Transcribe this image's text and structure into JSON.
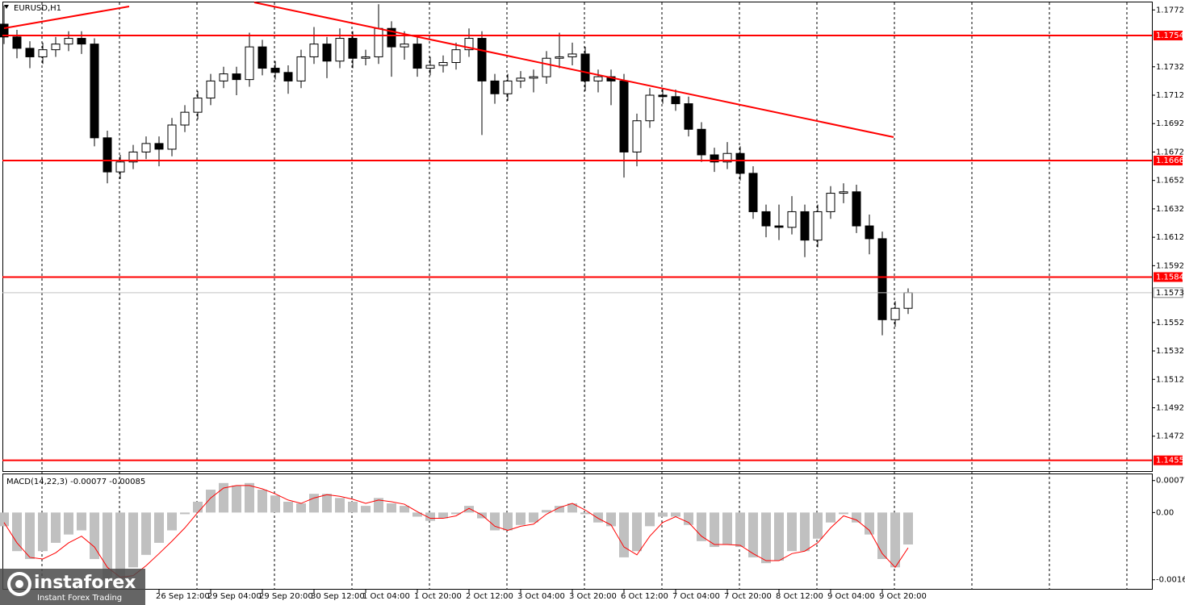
{
  "chart_data": [
    {
      "type": "candlestick",
      "title": "EURUSD,H1",
      "categories": [
        null,
        null,
        null,
        null,
        null,
        null,
        null,
        null,
        null,
        null,
        null,
        null,
        "26 Sep 12:00",
        null,
        null,
        null,
        "29 Sep 04:00",
        null,
        null,
        null,
        "29 Sep 20:00",
        null,
        null,
        null,
        "30 Sep 12:00",
        null,
        null,
        null,
        "1 Oct 04:00",
        null,
        null,
        null,
        "1 Oct 20:00",
        null,
        null,
        null,
        "2 Oct 12:00",
        null,
        null,
        null,
        "3 Oct 04:00",
        null,
        null,
        null,
        "3 Oct 20:00",
        null,
        null,
        null,
        "6 Oct 12:00",
        null,
        null,
        null,
        "7 Oct 04:00",
        null,
        null,
        null,
        "7 Oct 20:00",
        null,
        null,
        null,
        "8 Oct 12:00",
        null,
        null,
        null,
        "9 Oct 04:00",
        null,
        null,
        null,
        "9 Oct 20:00",
        null,
        null
      ],
      "open": [
        1.1762,
        1.1753,
        1.1745,
        1.1739,
        1.1744,
        1.1748,
        1.1752,
        1.1748,
        1.1682,
        1.1658,
        1.1665,
        1.1672,
        1.1678,
        1.1674,
        1.1691,
        1.17,
        1.171,
        1.1722,
        1.1727,
        1.1723,
        1.1746,
        1.1731,
        1.1728,
        1.1722,
        1.1739,
        1.1748,
        1.1736,
        1.1752,
        1.1738,
        1.1739,
        1.1759,
        1.1746,
        1.1748,
        1.1731,
        1.1733,
        1.1735,
        1.1744,
        1.1752,
        1.1722,
        1.1713,
        1.1722,
        1.1724,
        1.1725,
        1.1738,
        1.1739,
        1.1741,
        1.1722,
        1.1725,
        1.1722,
        1.1672,
        1.1694,
        1.1712,
        1.1711,
        1.1706,
        1.1688,
        1.167,
        1.1665,
        1.1671,
        1.1657,
        1.163,
        1.162,
        1.1619,
        1.163,
        1.161,
        1.163,
        1.1643,
        1.1644,
        1.162,
        1.1611,
        1.1554,
        1.1562
      ],
      "high": [
        1.1775,
        1.1758,
        1.175,
        1.1749,
        1.1753,
        1.1757,
        1.1757,
        1.1752,
        1.1687,
        1.167,
        1.1677,
        1.1683,
        1.1683,
        1.1696,
        1.1705,
        1.1715,
        1.1727,
        1.1732,
        1.1732,
        1.1756,
        1.1751,
        1.1736,
        1.1733,
        1.1744,
        1.176,
        1.1753,
        1.1759,
        1.1757,
        1.1744,
        1.1776,
        1.1764,
        1.1757,
        1.1753,
        1.1739,
        1.174,
        1.1749,
        1.1759,
        1.1757,
        1.1727,
        1.1727,
        1.1729,
        1.173,
        1.1743,
        1.1756,
        1.1749,
        1.1746,
        1.173,
        1.173,
        1.1727,
        1.1699,
        1.1717,
        1.1717,
        1.1716,
        1.1711,
        1.1693,
        1.1675,
        1.1679,
        1.1676,
        1.1662,
        1.1635,
        1.1635,
        1.1641,
        1.1635,
        1.1635,
        1.1648,
        1.165,
        1.1649,
        1.1628,
        1.1616,
        1.1567,
        1.1576
      ],
      "low": [
        1.1748,
        1.1738,
        1.1731,
        1.1734,
        1.1739,
        1.1743,
        1.1741,
        1.1676,
        1.165,
        1.1653,
        1.166,
        1.1667,
        1.1662,
        1.1669,
        1.1686,
        1.1695,
        1.1705,
        1.1717,
        1.1712,
        1.1718,
        1.1726,
        1.1723,
        1.1713,
        1.1717,
        1.1734,
        1.1724,
        1.1731,
        1.1731,
        1.1733,
        1.1734,
        1.1725,
        1.1737,
        1.1725,
        1.1726,
        1.1728,
        1.173,
        1.1739,
        1.1684,
        1.1706,
        1.1708,
        1.1717,
        1.1714,
        1.172,
        1.1731,
        1.1733,
        1.1715,
        1.1714,
        1.1705,
        1.1654,
        1.1662,
        1.1689,
        1.1706,
        1.1701,
        1.1683,
        1.1665,
        1.1658,
        1.166,
        1.1652,
        1.1625,
        1.1612,
        1.161,
        1.1614,
        1.1598,
        1.1605,
        1.1625,
        1.1636,
        1.1615,
        1.16,
        1.1543,
        1.1549,
        1.1558
      ],
      "close": [
        1.1753,
        1.1745,
        1.1739,
        1.1744,
        1.1748,
        1.1752,
        1.1748,
        1.1682,
        1.1658,
        1.1665,
        1.1672,
        1.1678,
        1.1674,
        1.1691,
        1.17,
        1.171,
        1.1722,
        1.1727,
        1.1723,
        1.1746,
        1.1731,
        1.1728,
        1.1722,
        1.1739,
        1.1748,
        1.1736,
        1.1752,
        1.1738,
        1.1739,
        1.1759,
        1.1746,
        1.1748,
        1.1731,
        1.1733,
        1.1735,
        1.1744,
        1.1752,
        1.1722,
        1.1713,
        1.1722,
        1.1724,
        1.1725,
        1.1738,
        1.1739,
        1.1741,
        1.1722,
        1.1725,
        1.1722,
        1.1672,
        1.1694,
        1.1712,
        1.1711,
        1.1706,
        1.1688,
        1.167,
        1.1665,
        1.1671,
        1.1657,
        1.163,
        1.162,
        1.1619,
        1.163,
        1.161,
        1.163,
        1.1643,
        1.1644,
        1.162,
        1.1611,
        1.1554,
        1.1562,
        1.1573
      ],
      "up_color": "#ffffff",
      "down_color": "#000000",
      "outline_color": "#000000",
      "ylim": [
        1.1448,
        1.1779
      ],
      "yticks": [
        1.1772,
        1.1732,
        1.1712,
        1.1692,
        1.1672,
        1.1652,
        1.1632,
        1.1612,
        1.1592,
        1.1552,
        1.1532,
        1.1512,
        1.1492,
        1.1472
      ],
      "levels": [
        1.1754,
        1.1666,
        1.1584,
        1.1455
      ],
      "level_color": "#ff0000",
      "last_price": 1.1573,
      "last_price_color": "#c0c0c0",
      "grid": true,
      "watermark": {
        "brand": "instaforex",
        "tagline": "Instant Forex Trading"
      }
    },
    {
      "type": "macd",
      "title": "MACD(14,22,3) -0.00077 -0.00085",
      "histogram": [
        -0.00033,
        -0.00093,
        -0.00112,
        -0.00093,
        -0.00073,
        -0.00053,
        -0.00043,
        -0.00112,
        -0.00162,
        -0.00162,
        -0.00132,
        -0.00102,
        -0.00073,
        -0.00043,
        -4e-05,
        0.00026,
        0.00055,
        0.00071,
        0.00065,
        0.00071,
        0.00055,
        0.00041,
        0.00026,
        0.00022,
        0.00045,
        0.00045,
        0.00035,
        0.00026,
        0.00016,
        0.00035,
        0.00022,
        0.00016,
        -0.0001,
        -0.0002,
        -0.00014,
        -4e-05,
        0.00016,
        -0.00014,
        -0.00043,
        -0.00043,
        -0.0003,
        -0.00024,
        6e-05,
        0.00016,
        0.00022,
        -4e-05,
        -0.00024,
        -0.00033,
        -0.00108,
        -0.00093,
        -0.00033,
        -0.0001,
        -0.0001,
        -0.0003,
        -0.00069,
        -0.00083,
        -0.00077,
        -0.00083,
        -0.00108,
        -0.00122,
        -0.00116,
        -0.00093,
        -0.00093,
        -0.00063,
        -0.00024,
        -4e-05,
        -0.00024,
        -0.00053,
        -0.00112,
        -0.00132,
        -0.00077
      ],
      "signal": [
        -0.00024,
        -0.00073,
        -0.00108,
        -0.00112,
        -0.00097,
        -0.00073,
        -0.00057,
        -0.00083,
        -0.00132,
        -0.00156,
        -0.00152,
        -0.00128,
        -0.00099,
        -0.00069,
        -0.00037,
        0,
        0.00035,
        0.00059,
        0.00065,
        0.00065,
        0.00057,
        0.00045,
        0.0003,
        0.00022,
        0.00035,
        0.00043,
        0.00039,
        0.00032,
        0.00022,
        0.0003,
        0.00026,
        0.0002,
        2e-05,
        -0.00014,
        -0.00014,
        -8e-05,
        0.0001,
        -6e-05,
        -0.00033,
        -0.00043,
        -0.00033,
        -0.00028,
        -4e-05,
        0.00012,
        0.00022,
        6e-05,
        -0.00014,
        -0.0003,
        -0.00083,
        -0.00102,
        -0.00057,
        -0.00024,
        -0.0001,
        -0.00024,
        -0.00057,
        -0.00077,
        -0.00077,
        -0.00079,
        -0.00099,
        -0.00116,
        -0.00116,
        -0.00099,
        -0.00093,
        -0.00073,
        -0.00037,
        -8e-05,
        -0.00018,
        -0.00043,
        -0.00099,
        -0.00132,
        -0.00085
      ],
      "histogram_color": "#c0c0c0",
      "signal_color": "#ff0000",
      "ylim": [
        -0.0018,
        0.00092
      ],
      "yticks": [
        0.00077,
        {
          "value": 0,
          "label": "0.00"
        },
        -0.00162
      ]
    }
  ]
}
